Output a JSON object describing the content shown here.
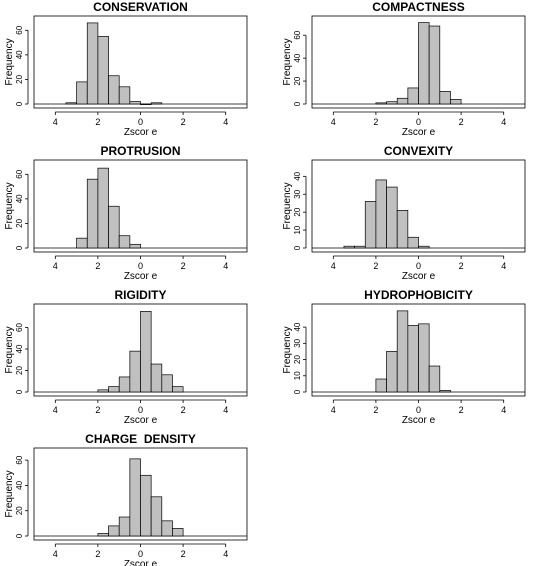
{
  "chart_data": [
    {
      "type": "bar",
      "title": "CONSERVATION",
      "xlabel": "Zscor e",
      "ylabel": "Frequency",
      "x_ticks": [
        -4,
        -2,
        0,
        2,
        4
      ],
      "x_tick_labels": [
        "4",
        "2",
        "0",
        "2",
        "4"
      ],
      "y_ticks": [
        0,
        20,
        40,
        60
      ],
      "xlim": [
        -5,
        5
      ],
      "ylim": [
        0,
        70
      ],
      "bin_width": 0.5,
      "bin_starts": [
        -3.5,
        -3.0,
        -2.5,
        -2.0,
        -1.5,
        -1.0,
        -0.5,
        0.0,
        0.5
      ],
      "values": [
        1,
        18,
        66,
        55,
        23,
        14,
        2,
        0,
        1
      ]
    },
    {
      "type": "bar",
      "title": "COMPACTNESS",
      "xlabel": "Zscor e",
      "ylabel": "Frequency",
      "x_ticks": [
        -4,
        -2,
        0,
        2,
        4
      ],
      "x_tick_labels": [
        "4",
        "2",
        "0",
        "2",
        "4"
      ],
      "y_ticks": [
        0,
        20,
        40,
        60
      ],
      "xlim": [
        -5,
        5
      ],
      "ylim": [
        0,
        75
      ],
      "bin_width": 0.5,
      "bin_starts": [
        -2.0,
        -1.5,
        -1.0,
        -0.5,
        0.0,
        0.5,
        1.0,
        1.5
      ],
      "values": [
        1,
        2,
        5,
        14,
        71,
        68,
        11,
        4
      ]
    },
    {
      "type": "bar",
      "title": "PROTRUSION",
      "xlabel": "Zscor e",
      "ylabel": "Frequency",
      "x_ticks": [
        -4,
        -2,
        0,
        2,
        4
      ],
      "x_tick_labels": [
        "4",
        "2",
        "0",
        "2",
        "4"
      ],
      "y_ticks": [
        0,
        20,
        40,
        60
      ],
      "xlim": [
        -5,
        5
      ],
      "ylim": [
        0,
        70
      ],
      "bin_width": 0.5,
      "bin_starts": [
        -3.0,
        -2.5,
        -2.0,
        -1.5,
        -1.0,
        -0.5
      ],
      "values": [
        8,
        56,
        65,
        34,
        10,
        3
      ]
    },
    {
      "type": "bar",
      "title": "CONVEXITY",
      "xlabel": "Zscor e",
      "ylabel": "Frequency",
      "x_ticks": [
        -4,
        -2,
        0,
        2,
        4
      ],
      "x_tick_labels": [
        "4",
        "2",
        "0",
        "2",
        "4"
      ],
      "y_ticks": [
        0,
        10,
        20,
        30,
        40
      ],
      "xlim": [
        -5,
        5
      ],
      "ylim": [
        0,
        48
      ],
      "bin_width": 0.5,
      "bin_starts": [
        -3.5,
        -3.0,
        -2.5,
        -2.0,
        -1.5,
        -1.0,
        -0.5,
        0.0
      ],
      "values": [
        1,
        1,
        26,
        38,
        34,
        21,
        6,
        1
      ]
    },
    {
      "type": "bar",
      "title": "RIGIDITY",
      "xlabel": "Zscor e",
      "ylabel": "Frequency",
      "x_ticks": [
        -4,
        -2,
        0,
        2,
        4
      ],
      "x_tick_labels": [
        "4",
        "2",
        "0",
        "2",
        "4"
      ],
      "y_ticks": [
        0,
        20,
        40,
        60
      ],
      "xlim": [
        -5,
        5
      ],
      "ylim": [
        0,
        80
      ],
      "bin_width": 0.5,
      "bin_starts": [
        -2.0,
        -1.5,
        -1.0,
        -0.5,
        0.0,
        0.5,
        1.0,
        1.5
      ],
      "values": [
        2,
        5,
        14,
        38,
        75,
        26,
        16,
        5
      ]
    },
    {
      "type": "bar",
      "title": "HYDROPHOBICITY",
      "xlabel": "Zscor e",
      "ylabel": "Frequency",
      "x_ticks": [
        -4,
        -2,
        0,
        2,
        4
      ],
      "x_tick_labels": [
        "4",
        "2",
        "0",
        "2",
        "4"
      ],
      "y_ticks": [
        0,
        10,
        20,
        30,
        40
      ],
      "xlim": [
        -5,
        5
      ],
      "ylim": [
        0,
        53
      ],
      "bin_width": 0.5,
      "bin_starts": [
        -2.0,
        -1.5,
        -1.0,
        -0.5,
        0.0,
        0.5,
        1.0
      ],
      "values": [
        8,
        25,
        50,
        41,
        42,
        16,
        1
      ]
    },
    {
      "type": "bar",
      "title": "CHARGE  DENSITY",
      "xlabel": "Zscor e",
      "ylabel": "Frequency",
      "x_ticks": [
        -4,
        -2,
        0,
        2,
        4
      ],
      "x_tick_labels": [
        "4",
        "2",
        "0",
        "2",
        "4"
      ],
      "y_ticks": [
        0,
        20,
        40,
        60
      ],
      "xlim": [
        -5,
        5
      ],
      "ylim": [
        0,
        68
      ],
      "bin_width": 0.5,
      "bin_starts": [
        -2.0,
        -1.5,
        -1.0,
        -0.5,
        0.0,
        0.5,
        1.0,
        1.5
      ],
      "values": [
        2,
        8,
        15,
        61,
        48,
        31,
        12,
        6
      ]
    }
  ],
  "colors": {
    "bar_fill": "#c0c0c0",
    "bar_stroke": "#000000",
    "axis": "#000000",
    "background": "#ffffff"
  }
}
